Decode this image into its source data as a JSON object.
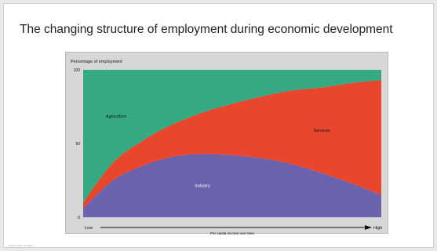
{
  "slide": {
    "title": "The changing structure of employment during economic development"
  },
  "chart_data": {
    "type": "area",
    "stacked": true,
    "title": "",
    "ylabel": "Percentage of employment",
    "xlabel": "Per capita income over time",
    "x_start_label": "Low",
    "x_end_label": "High",
    "yticks": [
      "0",
      "50",
      "100"
    ],
    "ylim": [
      0,
      100
    ],
    "x": [
      0,
      10,
      20,
      30,
      40,
      50,
      60,
      70,
      80,
      90,
      100
    ],
    "series": [
      {
        "name": "Industry",
        "color": "#6a62ac",
        "label_color": "#ffffff",
        "values": [
          6,
          25,
          35,
          41,
          43,
          42,
          40,
          36,
          30,
          23,
          15
        ]
      },
      {
        "name": "Services",
        "color": "#e8472e",
        "label_color": "#111111",
        "values": [
          4,
          12,
          17,
          22,
          28,
          35,
          42,
          50,
          58,
          68,
          78
        ]
      },
      {
        "name": "Agriculture",
        "color": "#35a981",
        "label_color": "#111111",
        "values": [
          90,
          63,
          48,
          37,
          29,
          23,
          18,
          14,
          12,
          9,
          7
        ]
      }
    ]
  },
  "footnote": "Prentice Hall, copyright"
}
